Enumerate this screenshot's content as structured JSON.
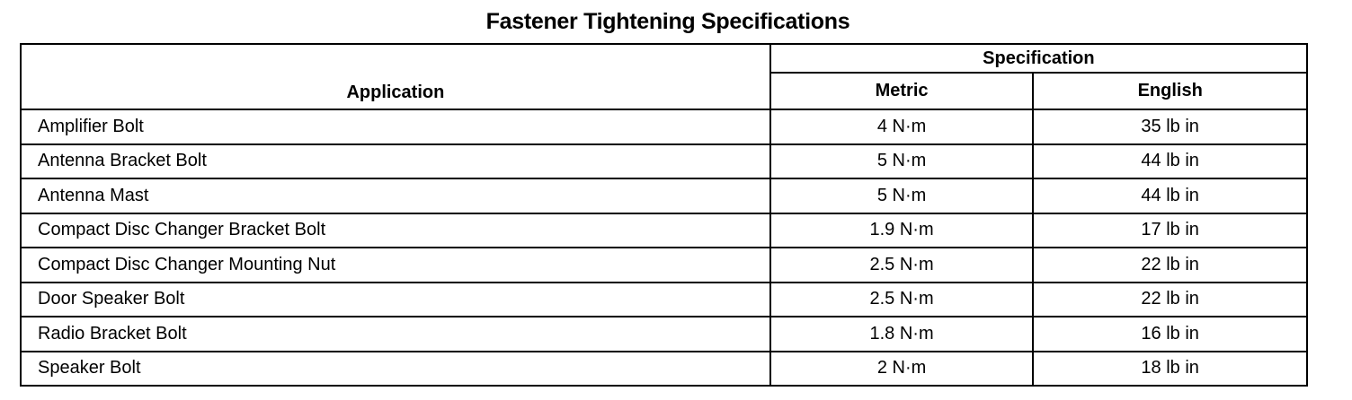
{
  "title": "Fastener Tightening Specifications",
  "headers": {
    "application": "Application",
    "specification": "Specification",
    "metric": "Metric",
    "english": "English"
  },
  "rows": [
    {
      "application": "Amplifier Bolt",
      "metric": "4 N·m",
      "english": "35 lb in"
    },
    {
      "application": "Antenna Bracket Bolt",
      "metric": "5 N·m",
      "english": "44 lb in"
    },
    {
      "application": "Antenna Mast",
      "metric": "5 N·m",
      "english": "44 lb in"
    },
    {
      "application": "Compact Disc Changer Bracket Bolt",
      "metric": "1.9 N·m",
      "english": "17 lb in"
    },
    {
      "application": "Compact Disc Changer Mounting Nut",
      "metric": "2.5 N·m",
      "english": "22 lb in"
    },
    {
      "application": "Door Speaker Bolt",
      "metric": "2.5 N·m",
      "english": "22 lb in"
    },
    {
      "application": "Radio Bracket Bolt",
      "metric": "1.8 N·m",
      "english": "16 lb in"
    },
    {
      "application": "Speaker Bolt",
      "metric": "2 N·m",
      "english": "18 lb in"
    }
  ]
}
